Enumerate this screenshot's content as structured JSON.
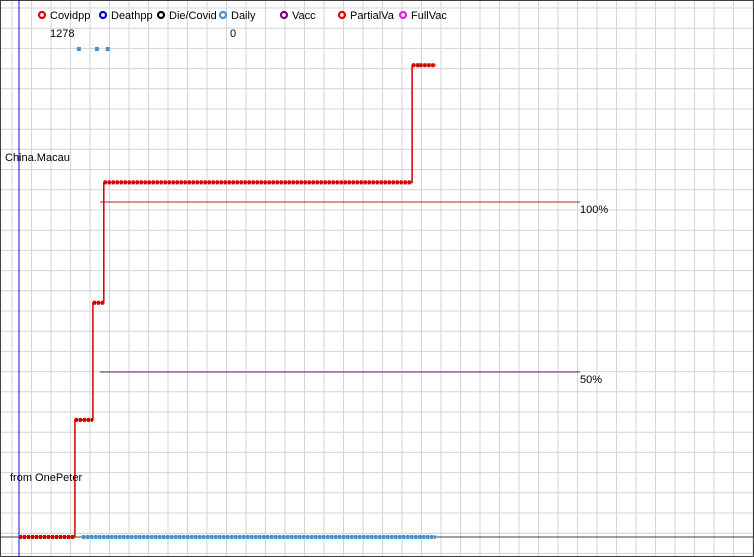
{
  "chart_data": {
    "type": "line",
    "title": "China.Macau",
    "credit": "from OnePeter",
    "legend": {
      "placement": "top",
      "items": [
        {
          "label": "Covidpp",
          "color": "#e00000"
        },
        {
          "label": "Deathpp",
          "color": "#0000d0"
        },
        {
          "label": "Die/Covid",
          "color": "#000000"
        },
        {
          "label": "Daily",
          "color": "#4a90c8"
        },
        {
          "label": "Vacc",
          "color": "#800080"
        },
        {
          "label": "PartialVa",
          "color": "#e00000"
        },
        {
          "label": "FullVac",
          "color": "#e020e0"
        }
      ],
      "values": [
        {
          "series": "Covidpp",
          "text": "1278"
        },
        {
          "series": "Daily",
          "text": "0"
        }
      ]
    },
    "reference_lines": [
      {
        "label": "100%",
        "value": 100,
        "color": "#b02020"
      },
      {
        "label": "50%",
        "value": 50,
        "color": "#602060"
      }
    ],
    "ylim": [
      0,
      150
    ],
    "xlim": [
      0,
      300
    ],
    "grid": true,
    "series": [
      {
        "name": "Covidpp",
        "color": "#d00000",
        "style": "step",
        "points": [
          [
            0,
            0
          ],
          [
            31,
            0
          ],
          [
            31,
            36
          ],
          [
            41,
            36
          ],
          [
            41,
            72
          ],
          [
            47,
            72
          ],
          [
            47,
            109
          ],
          [
            218,
            109
          ],
          [
            218,
            145
          ],
          [
            222,
            145
          ],
          [
            231,
            145
          ]
        ]
      },
      {
        "name": "Daily",
        "color": "#4a90c8",
        "style": "dots",
        "range": [
          35,
          231
        ],
        "spikes": [
          31,
          41,
          47
        ]
      }
    ]
  }
}
